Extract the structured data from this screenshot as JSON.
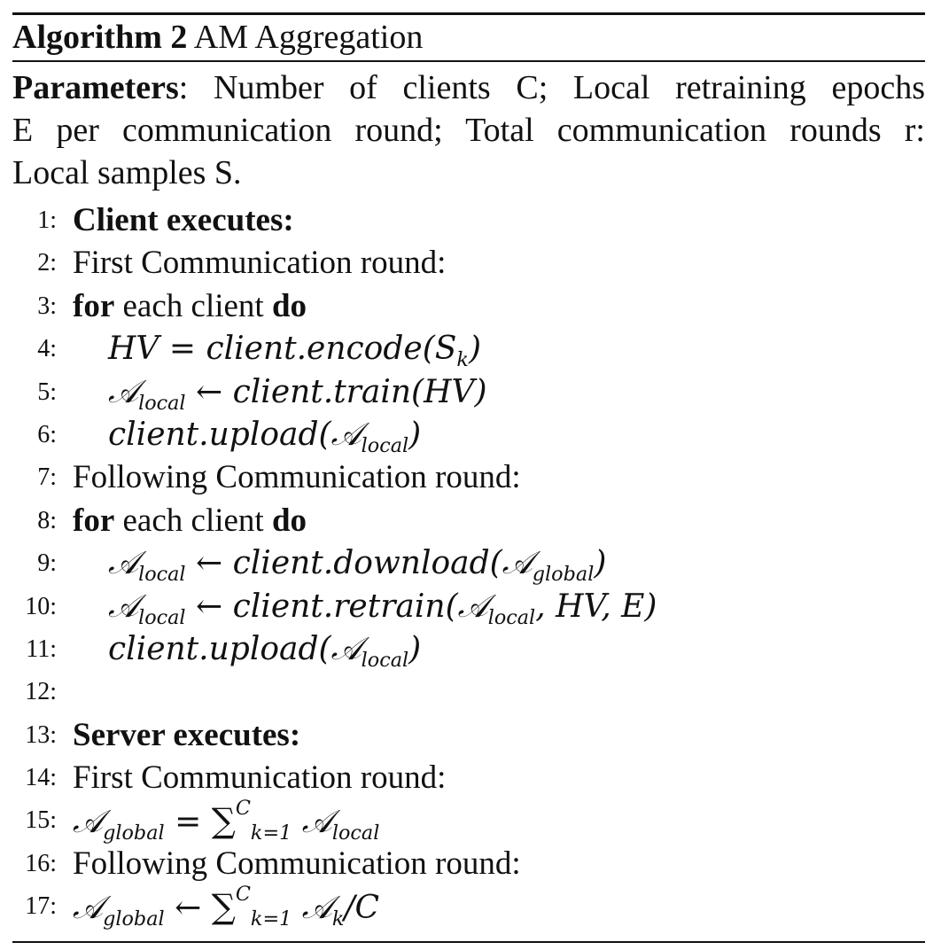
{
  "algorithm": {
    "label": "Algorithm 2",
    "name": "AM Aggregation"
  },
  "parameters": {
    "heading": "Parameters",
    "line1": ": Number of clients C; Local retraining epochs",
    "line2": "E per communication round; Total communication rounds r:",
    "line3": "Local samples S."
  },
  "steps": [
    {
      "num": "1:",
      "text": "Client executes:"
    },
    {
      "num": "2:",
      "text": "First Communication round:"
    },
    {
      "num": "3:",
      "kw1": "for",
      "text": " each client ",
      "kw2": "do"
    },
    {
      "num": "4:",
      "text": "HV = client.encode(S",
      "sub": "k",
      "tail": ")"
    },
    {
      "num": "5:",
      "text": "local ← client.train(HV)"
    },
    {
      "num": "6:",
      "text": "client.upload(local)"
    },
    {
      "num": "7:",
      "text": "Following Communication round:"
    },
    {
      "num": "8:",
      "kw1": "for",
      "text": " each client ",
      "kw2": "do"
    },
    {
      "num": "9:",
      "text": "local ← client.download(global)"
    },
    {
      "num": "10:",
      "text": "local ← client.retrain(local, HV, E)"
    },
    {
      "num": "11:",
      "text": "client.upload(local)"
    },
    {
      "num": "12:",
      "text": ""
    },
    {
      "num": "13:",
      "text": "Server executes:"
    },
    {
      "num": "14:",
      "text": "First Communication round:"
    },
    {
      "num": "15:",
      "text": "global = ∑ k=1 C local"
    },
    {
      "num": "16:",
      "text": "Following Communication round:"
    },
    {
      "num": "17:",
      "text": "global ← ∑ k=1 C k/C"
    }
  ],
  "symbols": {
    "A": "𝒜",
    "local": "local",
    "global": "global",
    "k": "k",
    "sum": "∑",
    "k_eq_1": "k=1",
    "C": "C"
  }
}
